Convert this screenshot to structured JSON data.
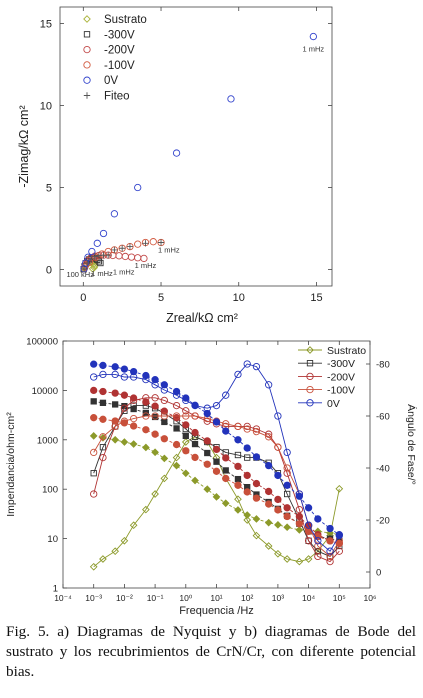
{
  "chart_data": [
    {
      "type": "scatter",
      "panel": "a",
      "xlabel": "Zreal/kΩ cm²",
      "ylabel": "-Zimag/kΩ cm²",
      "xlim": [
        -1.5,
        16
      ],
      "ylim": [
        -1,
        16
      ],
      "x_ticks": [
        "0",
        "5",
        "10",
        "15"
      ],
      "y_ticks": [
        "0",
        "5",
        "10",
        "15"
      ],
      "legend_position": "top-left",
      "grid": false,
      "series": [
        {
          "name": "Sustrato",
          "marker": "diamond",
          "color": "#aab33a",
          "x": [
            0.05,
            0.12,
            0.22,
            0.35,
            0.48,
            0.6,
            0.68,
            0.72,
            0.7,
            0.6
          ],
          "y": [
            0.05,
            0.18,
            0.3,
            0.4,
            0.44,
            0.42,
            0.34,
            0.22,
            0.12,
            0.05
          ]
        },
        {
          "name": "-300V",
          "marker": "square",
          "color": "#333333",
          "x": [
            0.02,
            0.08,
            0.15,
            0.25,
            0.38,
            0.52,
            0.66,
            0.78,
            0.9,
            1.0,
            1.1
          ],
          "y": [
            0.02,
            0.2,
            0.38,
            0.52,
            0.62,
            0.68,
            0.7,
            0.68,
            0.6,
            0.5,
            0.4
          ]
        },
        {
          "name": "-200V",
          "marker": "circle",
          "color": "#c24a4a",
          "x": [
            0.05,
            0.15,
            0.3,
            0.5,
            0.75,
            1.0,
            1.3,
            1.6,
            1.9,
            2.3,
            2.7,
            3.1,
            3.5,
            3.9
          ],
          "y": [
            0.05,
            0.3,
            0.55,
            0.72,
            0.82,
            0.86,
            0.88,
            0.88,
            0.86,
            0.84,
            0.8,
            0.76,
            0.72,
            0.68
          ]
        },
        {
          "name": "-100V",
          "marker": "circle",
          "color": "#d25a40",
          "x": [
            0.1,
            0.4,
            0.8,
            1.2,
            1.6,
            2.0,
            2.5,
            3.0,
            3.5,
            4.0,
            4.5,
            5.0
          ],
          "y": [
            0.15,
            0.45,
            0.75,
            0.95,
            1.1,
            1.2,
            1.3,
            1.4,
            1.55,
            1.65,
            1.7,
            1.65
          ]
        },
        {
          "name": "0V",
          "marker": "circle",
          "color": "#3344cc",
          "x": [
            0.05,
            0.15,
            0.3,
            0.55,
            0.9,
            1.3,
            2.0,
            3.5,
            6.0,
            9.5,
            14.8
          ],
          "y": [
            0.05,
            0.4,
            0.75,
            1.1,
            1.6,
            2.2,
            3.4,
            5.0,
            7.1,
            10.4,
            14.2
          ]
        },
        {
          "name": "Fiteo",
          "marker": "plus",
          "color": "#555555",
          "x": [
            0.05,
            0.25,
            0.5,
            0.75,
            1.0,
            1.3,
            1.6,
            2.0,
            2.5,
            3.0,
            4.0,
            5.0
          ],
          "y": [
            0.05,
            0.4,
            0.65,
            0.8,
            0.86,
            0.88,
            0.88,
            1.2,
            1.3,
            1.4,
            1.6,
            1.65
          ]
        }
      ],
      "annotations": [
        {
          "text": "1 mHz",
          "x": 14.8,
          "y": 13.3
        },
        {
          "text": "1 mHz",
          "x": 5.5,
          "y": 1.05
        },
        {
          "text": "1 mHz",
          "x": 4.0,
          "y": 0.1
        },
        {
          "text": "1 mHz",
          "x": 2.6,
          "y": -0.3
        },
        {
          "text": "1 mHz",
          "x": 1.2,
          "y": -0.4
        },
        {
          "text": "100 kHz",
          "x": -0.2,
          "y": -0.45
        }
      ]
    },
    {
      "type": "line",
      "panel": "b",
      "xlabel": "Frequencia /Hz",
      "ylabel": "Impendancia/ohm-cm²",
      "ylabel_right": "Ángulo de Fase/°",
      "x_scale": "log",
      "y_scale": "log",
      "xlim": [
        0.0001,
        1000000
      ],
      "ylim": [
        1,
        100000
      ],
      "y_right_lim": [
        0,
        -90
      ],
      "x_ticks": [
        "10⁻⁴",
        "10⁻³",
        "10⁻²",
        "10⁻¹",
        "10⁰",
        "10¹",
        "10²",
        "10³",
        "10⁴",
        "10⁵",
        "10⁶"
      ],
      "y_ticks": [
        "1",
        "10",
        "100",
        "1000",
        "10000",
        "100000"
      ],
      "y_right_ticks": [
        "0",
        "-20",
        "-40",
        "-60",
        "-80"
      ],
      "legend_position": "top-right",
      "grid": false,
      "x": [
        0.001,
        0.002,
        0.005,
        0.01,
        0.02,
        0.05,
        0.1,
        0.2,
        0.5,
        1,
        2,
        5,
        10,
        20,
        50,
        100,
        200,
        500,
        1000,
        2000,
        5000,
        10000,
        20000,
        50000,
        100000
      ],
      "series": [
        {
          "name": "Sustrato",
          "color": "#8c9a2a",
          "impedance": [
            1200,
            1100,
            1000,
            900,
            820,
            700,
            560,
            420,
            300,
            210,
            150,
            100,
            70,
            52,
            38,
            30,
            25,
            21,
            19,
            17,
            15,
            14,
            14,
            13,
            12
          ],
          "phase": [
            -2,
            -5,
            -8,
            -12,
            -18,
            -24,
            -30,
            -36,
            -44,
            -50,
            -52,
            -50,
            -44,
            -36,
            -28,
            -20,
            -14,
            -10,
            -7,
            -5,
            -4,
            -5,
            -8,
            -14,
            -32
          ]
        },
        {
          "name": "-300V",
          "color": "#333333",
          "impedance": [
            6000,
            5600,
            5200,
            4800,
            4200,
            3500,
            2900,
            2300,
            1700,
            1200,
            820,
            540,
            360,
            240,
            160,
            110,
            78,
            55,
            40,
            29,
            20,
            14,
            11,
            10,
            9
          ],
          "phase": [
            -38,
            -48,
            -56,
            -62,
            -64,
            -64,
            -63,
            -61,
            -58,
            -55,
            -52,
            -50,
            -48,
            -46,
            -45,
            -44,
            -44,
            -42,
            -38,
            -30,
            -20,
            -12,
            -8,
            -6,
            -10
          ]
        },
        {
          "name": "-200V",
          "color": "#b03333",
          "impedance": [
            10000,
            9500,
            8800,
            8000,
            7000,
            5800,
            4800,
            3800,
            2800,
            2000,
            1400,
            950,
            640,
            430,
            290,
            190,
            130,
            90,
            62,
            42,
            28,
            18,
            12,
            9,
            8
          ],
          "phase": [
            -30,
            -44,
            -56,
            -63,
            -66,
            -67,
            -67,
            -66,
            -64,
            -62,
            -60,
            -58,
            -57,
            -56,
            -56,
            -56,
            -55,
            -53,
            -48,
            -38,
            -24,
            -12,
            -6,
            -4,
            -8
          ]
        },
        {
          "name": "-100V",
          "color": "#c8503a",
          "impedance": [
            2800,
            2600,
            2400,
            2200,
            1900,
            1600,
            1300,
            1050,
            800,
            600,
            440,
            320,
            230,
            165,
            120,
            88,
            66,
            50,
            38,
            28,
            20,
            14,
            11,
            9,
            8
          ],
          "phase": [
            -46,
            -52,
            -56,
            -58,
            -59,
            -60,
            -60,
            -60,
            -60,
            -60,
            -60,
            -59,
            -58,
            -57,
            -56,
            -55,
            -54,
            -52,
            -48,
            -40,
            -30,
            -18,
            -10,
            -6,
            -12
          ]
        },
        {
          "name": "0V",
          "color": "#2233bb",
          "impedance": [
            34000,
            32000,
            30000,
            27000,
            24000,
            20000,
            16500,
            13000,
            9500,
            7000,
            5000,
            3400,
            2300,
            1500,
            1000,
            680,
            450,
            300,
            190,
            120,
            72,
            42,
            25,
            16,
            12
          ],
          "phase": [
            -75,
            -76,
            -76,
            -75,
            -75,
            -74,
            -72,
            -70,
            -68,
            -66,
            -64,
            -63,
            -64,
            -68,
            -76,
            -80,
            -79,
            -72,
            -60,
            -46,
            -30,
            -18,
            -12,
            -8,
            -14
          ]
        }
      ]
    }
  ],
  "caption": {
    "fig_label": "Fig. 5.",
    "text_line1": " a) Diagramas de Nyquist y b) diagramas de",
    "text_line2": "Bode del sustrato y los recubrimientos de CrN/Cr, con",
    "text_line3": "diferente potencial bias."
  }
}
